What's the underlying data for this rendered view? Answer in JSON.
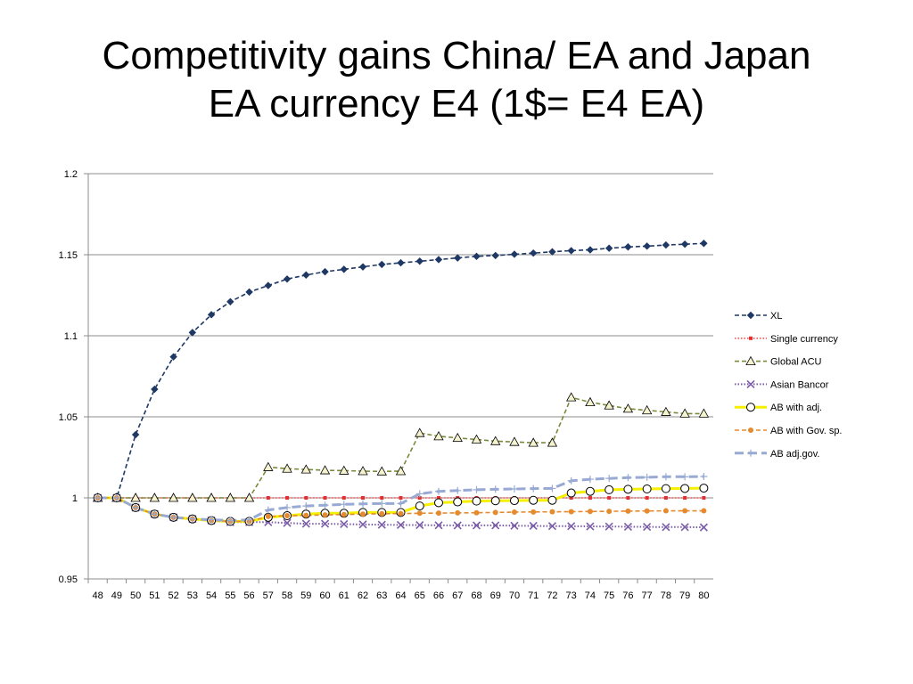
{
  "slide": {
    "title_line1": "Competitivity gains China/ EA and Japan",
    "title_line2": "EA currency E4 (1$= E4 EA)"
  },
  "chart_data": {
    "type": "line",
    "title": "",
    "xlabel": "",
    "ylabel": "",
    "categories": [
      "48",
      "49",
      "50",
      "51",
      "52",
      "53",
      "54",
      "55",
      "56",
      "57",
      "58",
      "59",
      "60",
      "61",
      "62",
      "63",
      "64",
      "65",
      "66",
      "67",
      "68",
      "69",
      "70",
      "71",
      "72",
      "73",
      "74",
      "75",
      "76",
      "77",
      "78",
      "79",
      "80"
    ],
    "ylim": [
      0.95,
      1.2
    ],
    "yticks": [
      "0.95",
      "1",
      "1.05",
      "1.1",
      "1.15",
      "1.2"
    ],
    "ytick_values": [
      0.95,
      1.0,
      1.05,
      1.1,
      1.15,
      1.2
    ],
    "grid": true,
    "legend_position": "right",
    "series": [
      {
        "name": "XL",
        "color": "#1f3864",
        "dash": "dashed",
        "marker": "diamond",
        "values": [
          1.0,
          1.0,
          1.039,
          1.067,
          1.087,
          1.102,
          1.113,
          1.121,
          1.127,
          1.131,
          1.135,
          1.1375,
          1.1395,
          1.141,
          1.1425,
          1.144,
          1.145,
          1.146,
          1.147,
          1.148,
          1.149,
          1.1495,
          1.1503,
          1.151,
          1.1518,
          1.1525,
          1.153,
          1.154,
          1.1548,
          1.1553,
          1.156,
          1.1565,
          1.157
        ]
      },
      {
        "name": "Single currency",
        "color": "#ff4d4d",
        "dash": "dotted",
        "marker": "square",
        "values": [
          1.0,
          1.0,
          1.0,
          1.0,
          1.0,
          1.0,
          1.0,
          1.0,
          1.0,
          1.0,
          1.0,
          1.0,
          1.0,
          1.0,
          1.0,
          1.0,
          1.0,
          1.0,
          1.0,
          1.0,
          1.0,
          1.0,
          1.0,
          1.0,
          1.0,
          1.0,
          1.0,
          1.0,
          1.0,
          1.0,
          1.0,
          1.0,
          1.0
        ]
      },
      {
        "name": "Global ACU",
        "color": "#7a8a3a",
        "dash": "dashed",
        "marker": "triangle",
        "values": [
          1.0,
          1.0,
          1.0,
          1.0,
          1.0,
          1.0,
          1.0,
          1.0,
          1.0,
          1.019,
          1.018,
          1.0175,
          1.017,
          1.0168,
          1.0165,
          1.0163,
          1.0165,
          1.04,
          1.038,
          1.037,
          1.036,
          1.035,
          1.0345,
          1.034,
          1.034,
          1.062,
          1.059,
          1.057,
          1.055,
          1.054,
          1.053,
          1.052,
          1.052
        ]
      },
      {
        "name": "Asian Bancor",
        "color": "#7a5ca8",
        "dash": "dotted",
        "marker": "x",
        "values": [
          1.0,
          1.0,
          0.994,
          0.99,
          0.988,
          0.987,
          0.986,
          0.985,
          0.985,
          0.985,
          0.9845,
          0.984,
          0.984,
          0.9838,
          0.9836,
          0.9834,
          0.9833,
          0.9832,
          0.9831,
          0.983,
          0.983,
          0.983,
          0.9828,
          0.9827,
          0.9826,
          0.9825,
          0.9824,
          0.9823,
          0.9822,
          0.9821,
          0.982,
          0.982,
          0.9818
        ]
      },
      {
        "name": "AB with adj.",
        "color": "#f5f000",
        "dash": "solid",
        "marker": "circle",
        "values": [
          1.0,
          1.0,
          0.994,
          0.99,
          0.988,
          0.987,
          0.986,
          0.9855,
          0.9855,
          0.988,
          0.989,
          0.99,
          0.9905,
          0.9905,
          0.991,
          0.991,
          0.991,
          0.995,
          0.997,
          0.9975,
          0.998,
          0.9982,
          0.9983,
          0.9985,
          0.9985,
          1.003,
          1.004,
          1.005,
          1.0053,
          1.0055,
          1.0057,
          1.0058,
          1.006
        ]
      },
      {
        "name": "AB with Gov. sp.",
        "color": "#e58a2e",
        "dash": "dashed",
        "marker": "dot",
        "values": [
          1.0,
          1.0,
          0.994,
          0.99,
          0.988,
          0.987,
          0.986,
          0.9855,
          0.9855,
          0.9885,
          0.989,
          0.9892,
          0.9895,
          0.9897,
          0.99,
          0.9902,
          0.9903,
          0.9905,
          0.9906,
          0.9907,
          0.9908,
          0.991,
          0.9912,
          0.9913,
          0.9914,
          0.9915,
          0.9916,
          0.9917,
          0.9918,
          0.9919,
          0.992,
          0.992,
          0.992
        ]
      },
      {
        "name": "AB adj.gov.",
        "color": "#98a9d4",
        "dash": "longdash",
        "marker": "plus",
        "values": [
          1.0,
          1.0,
          0.994,
          0.99,
          0.988,
          0.987,
          0.9865,
          0.986,
          0.9865,
          0.9925,
          0.994,
          0.995,
          0.9955,
          0.996,
          0.9963,
          0.9965,
          0.9965,
          1.0025,
          1.004,
          1.0045,
          1.005,
          1.0053,
          1.0055,
          1.0057,
          1.0058,
          1.0105,
          1.0115,
          1.012,
          1.0125,
          1.0127,
          1.013,
          1.013,
          1.0132
        ]
      }
    ]
  }
}
